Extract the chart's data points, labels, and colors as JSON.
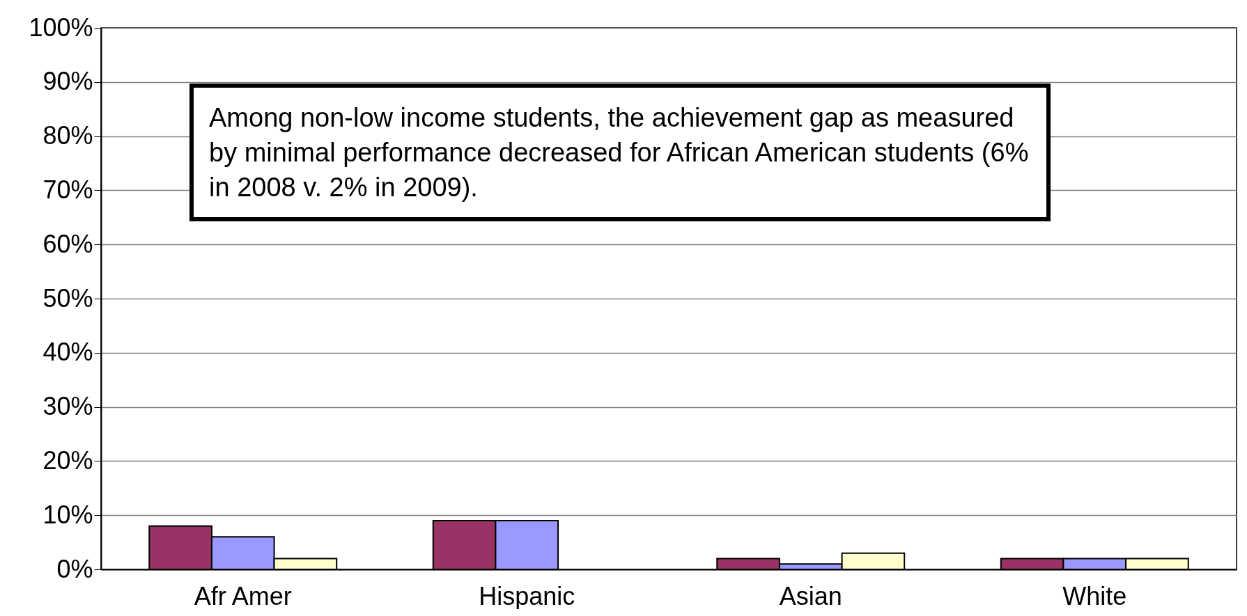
{
  "chart_data": {
    "type": "bar",
    "categories": [
      "Afr Amer",
      "Hispanic",
      "Asian",
      "White"
    ],
    "series": [
      {
        "color": "#993366",
        "values": [
          8,
          9,
          2,
          2
        ]
      },
      {
        "color": "#9999ff",
        "values": [
          6,
          9,
          1,
          2
        ]
      },
      {
        "color": "#ffffcc",
        "values": [
          2,
          null,
          3,
          2
        ]
      }
    ],
    "ylim": [
      0,
      100
    ],
    "yticks": [
      {
        "value": 0,
        "label": "0%"
      },
      {
        "value": 10,
        "label": "10%"
      },
      {
        "value": 20,
        "label": "20%"
      },
      {
        "value": 30,
        "label": "30%"
      },
      {
        "value": 40,
        "label": "40%"
      },
      {
        "value": 50,
        "label": "50%"
      },
      {
        "value": 60,
        "label": "60%"
      },
      {
        "value": 70,
        "label": "70%"
      },
      {
        "value": 80,
        "label": "80%"
      },
      {
        "value": 90,
        "label": "90%"
      },
      {
        "value": 100,
        "label": "100%"
      }
    ],
    "grid": "y",
    "legend": false,
    "annotations": [
      "Among non-low income students, the achievement gap as measured by minimal performance decreased for African American students (6% in 2008 v. 2% in 2009)."
    ]
  }
}
